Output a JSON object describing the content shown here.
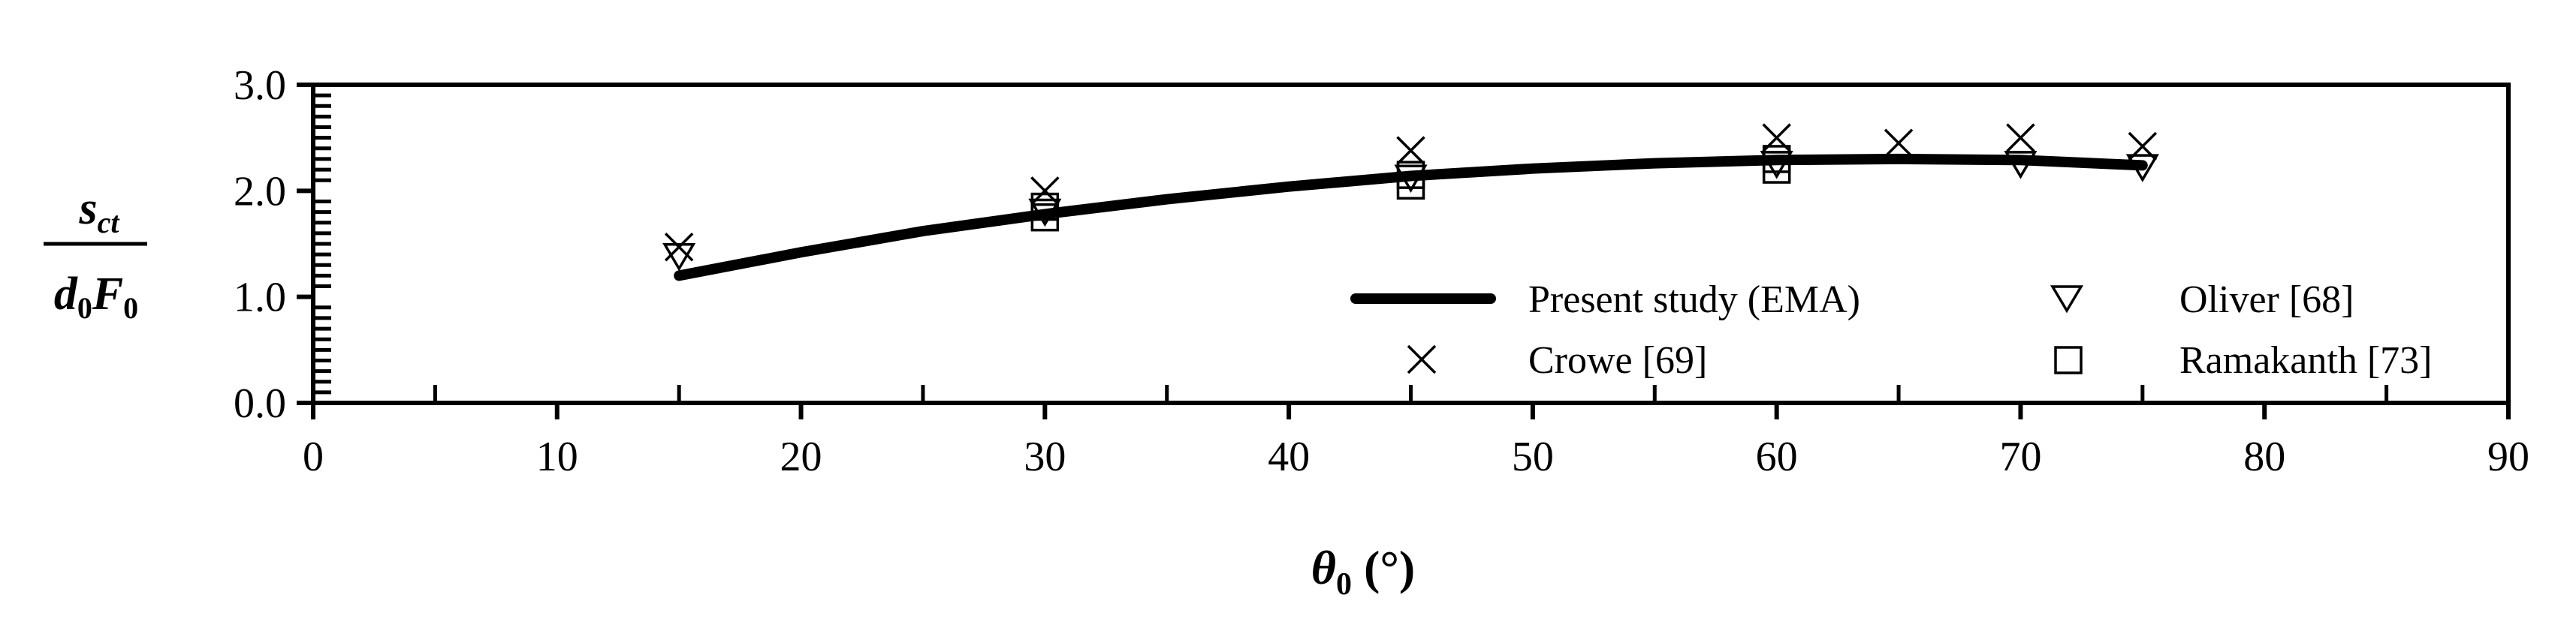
{
  "chart_data": {
    "type": "scatter",
    "xlim": [
      0,
      90
    ],
    "ylim": [
      0,
      3
    ],
    "x_major_ticks": [
      0,
      10,
      20,
      30,
      40,
      50,
      60,
      70,
      80,
      90
    ],
    "x_tick_labels": [
      "0",
      "10",
      "20",
      "30",
      "40",
      "50",
      "60",
      "70",
      "80",
      "90"
    ],
    "y_major_ticks": [
      0,
      1,
      2,
      3
    ],
    "y_tick_labels": [
      "0.0",
      "1.0",
      "2.0",
      "3.0"
    ],
    "grid": false,
    "xlabel": {
      "symbol": "θ",
      "subscript": "0",
      "unit": " (°)"
    },
    "ylabel": {
      "numerator": "s",
      "numerator_sub": "ct",
      "den_a": "d",
      "den_a_sub": "0",
      "den_b": "F",
      "den_b_sub": "0"
    },
    "legend_position": "bottom-right",
    "series": [
      {
        "name": "Present study (EMA)",
        "marker": "line",
        "x": [
          15,
          20,
          25,
          30,
          35,
          40,
          45,
          50,
          55,
          60,
          65,
          70,
          75
        ],
        "y": [
          1.2,
          1.42,
          1.62,
          1.78,
          1.92,
          2.04,
          2.14,
          2.21,
          2.26,
          2.29,
          2.3,
          2.29,
          2.24
        ]
      },
      {
        "name": "Oliver [68]",
        "marker": "triangle-down",
        "x": [
          15,
          30,
          45,
          60,
          70,
          75
        ],
        "y": [
          1.38,
          1.8,
          2.12,
          2.25,
          2.25,
          2.22
        ]
      },
      {
        "name": "Crowe [69]",
        "marker": "x",
        "x": [
          15,
          30,
          45,
          60,
          65,
          70,
          75
        ],
        "y": [
          1.47,
          2.0,
          2.38,
          2.5,
          2.45,
          2.5,
          2.42
        ]
      },
      {
        "name": "Ramakanth [73]",
        "marker": "square",
        "x": [
          30,
          30,
          45,
          45,
          60,
          60
        ],
        "y": [
          1.75,
          1.85,
          2.05,
          2.15,
          2.2,
          2.3
        ]
      }
    ]
  }
}
